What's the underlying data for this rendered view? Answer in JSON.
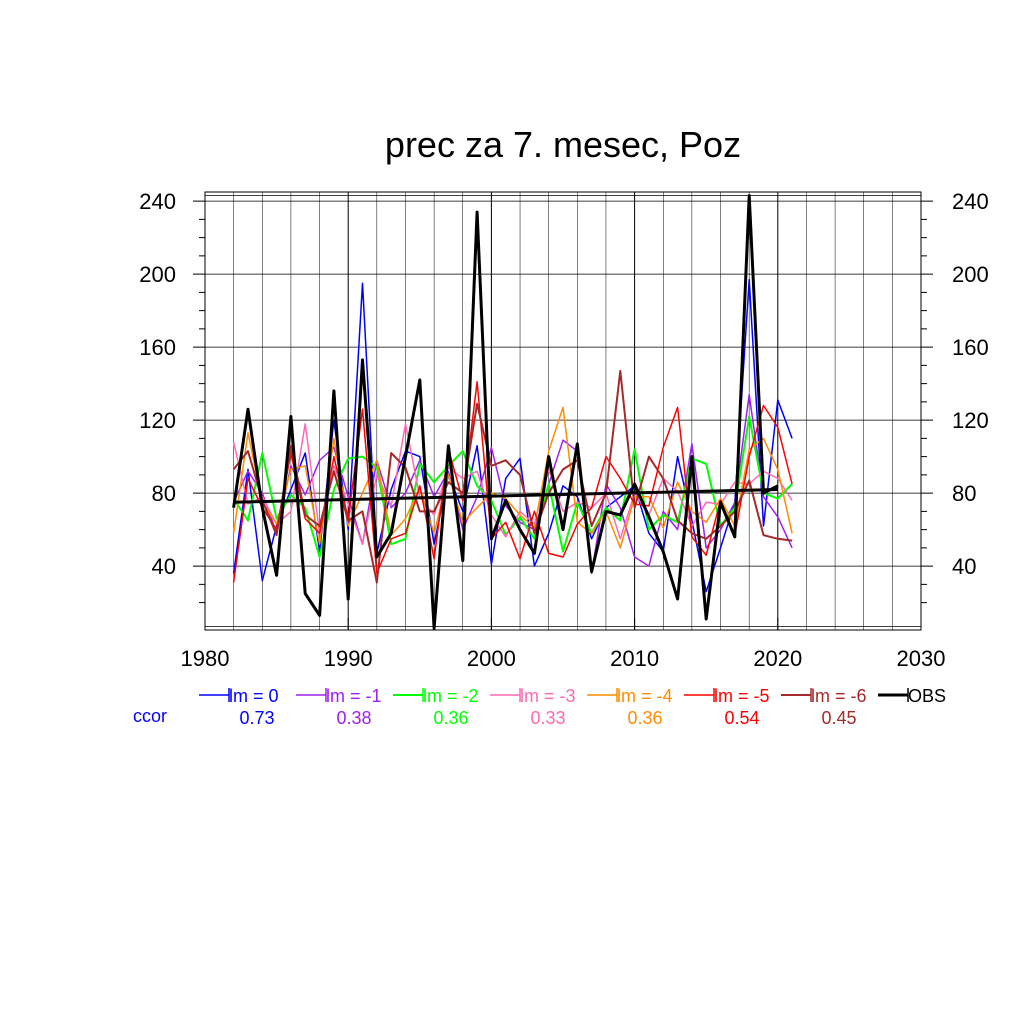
{
  "chart_data": {
    "type": "line",
    "title": "prec za 7. mesec, Poz",
    "xlabel": "",
    "ylabel": "",
    "xlim": [
      1980,
      2030
    ],
    "ylim": [
      5,
      245
    ],
    "x_ticks": [
      1980,
      1990,
      2000,
      2010,
      2020,
      2030
    ],
    "y_ticks": [
      40,
      80,
      120,
      160,
      200,
      240
    ],
    "grid": true,
    "legend_position": "below",
    "ccor_label": "ccor",
    "ccor_color": "#0000ff",
    "series": [
      {
        "name": "lm = 0",
        "color": "#0000ff",
        "width": 1.5,
        "ccor": "0.73",
        "x": [
          1982,
          1983,
          1984,
          1985,
          1986,
          1987,
          1988,
          1989,
          1990,
          1991,
          1992,
          1993,
          1994,
          1995,
          1996,
          1997,
          1998,
          1999,
          2000,
          2001,
          2002,
          2003,
          2004,
          2005,
          2006,
          2007,
          2008,
          2009,
          2010,
          2011,
          2012,
          2013,
          2014,
          2015,
          2016,
          2017,
          2018,
          2019,
          2020,
          2021
        ],
        "values": [
          36,
          93,
          32,
          62,
          82,
          102,
          48,
          120,
          60,
          195,
          47,
          82,
          103,
          100,
          52,
          90,
          70,
          106,
          41,
          88,
          99,
          40,
          58,
          84,
          78,
          55,
          72,
          78,
          84,
          58,
          48,
          100,
          65,
          26,
          50,
          75,
          197,
          62,
          131,
          110
        ]
      },
      {
        "name": "lm = -1",
        "color": "#a020f0",
        "width": 1.5,
        "ccor": "0.38",
        "x": [
          1982,
          1983,
          1984,
          1985,
          1986,
          1987,
          1988,
          1989,
          1990,
          1991,
          1992,
          1993,
          1994,
          1995,
          1996,
          1997,
          1998,
          1999,
          2000,
          2001,
          2002,
          2003,
          2004,
          2005,
          2006,
          2007,
          2008,
          2009,
          2010,
          2011,
          2012,
          2013,
          2014,
          2015,
          2016,
          2017,
          2018,
          2019,
          2020,
          2021
        ],
        "values": [
          75,
          92,
          80,
          58,
          95,
          79,
          98,
          105,
          78,
          52,
          98,
          72,
          80,
          98,
          78,
          92,
          60,
          78,
          105,
          73,
          64,
          60,
          85,
          109,
          103,
          36,
          85,
          72,
          45,
          40,
          70,
          60,
          107,
          50,
          60,
          75,
          134,
          78,
          67,
          50
        ]
      },
      {
        "name": "lm = -2",
        "color": "#00ff00",
        "width": 2,
        "ccor": "0.36",
        "x": [
          1982,
          1983,
          1984,
          1985,
          1986,
          1987,
          1988,
          1989,
          1990,
          1991,
          1992,
          1993,
          1994,
          1995,
          1996,
          1997,
          1998,
          1999,
          2000,
          2001,
          2002,
          2003,
          2004,
          2005,
          2006,
          2007,
          2008,
          2009,
          2010,
          2011,
          2012,
          2013,
          2014,
          2015,
          2016,
          2017,
          2018,
          2019,
          2020,
          2021
        ],
        "values": [
          77,
          65,
          102,
          66,
          79,
          72,
          45,
          82,
          99,
          100,
          94,
          52,
          55,
          96,
          86,
          95,
          103,
          84,
          76,
          57,
          67,
          55,
          85,
          48,
          75,
          58,
          72,
          65,
          104,
          60,
          68,
          64,
          99,
          96,
          62,
          72,
          122,
          80,
          77,
          85
        ]
      },
      {
        "name": "lm = -3",
        "color": "#ff69b4",
        "width": 1.5,
        "ccor": "0.33",
        "x": [
          1982,
          1983,
          1984,
          1985,
          1986,
          1987,
          1988,
          1989,
          1990,
          1991,
          1992,
          1993,
          1994,
          1995,
          1996,
          1997,
          1998,
          1999,
          2000,
          2001,
          2002,
          2003,
          2004,
          2005,
          2006,
          2007,
          2008,
          2009,
          2010,
          2011,
          2012,
          2013,
          2014,
          2015,
          2016,
          2017,
          2018,
          2019,
          2020,
          2021
        ],
        "values": [
          108,
          74,
          78,
          63,
          70,
          118,
          58,
          95,
          74,
          52,
          90,
          73,
          118,
          78,
          68,
          94,
          88,
          92,
          68,
          56,
          70,
          63,
          93,
          70,
          75,
          72,
          80,
          55,
          80,
          68,
          88,
          81,
          62,
          75,
          74,
          86,
          85,
          92,
          88,
          76
        ]
      },
      {
        "name": "lm = -4",
        "color": "#ff8c00",
        "width": 1.5,
        "ccor": "0.36",
        "x": [
          1982,
          1983,
          1984,
          1985,
          1986,
          1987,
          1988,
          1989,
          1990,
          1991,
          1992,
          1993,
          1994,
          1995,
          1996,
          1997,
          1998,
          1999,
          2000,
          2001,
          2002,
          2003,
          2004,
          2005,
          2006,
          2007,
          2008,
          2009,
          2010,
          2011,
          2012,
          2013,
          2014,
          2015,
          2016,
          2017,
          2018,
          2019,
          2020,
          2021
        ],
        "values": [
          58,
          113,
          75,
          63,
          93,
          95,
          52,
          110,
          62,
          80,
          98,
          57,
          66,
          83,
          58,
          90,
          64,
          72,
          80,
          77,
          68,
          61,
          103,
          127,
          64,
          58,
          70,
          50,
          78,
          78,
          61,
          86,
          70,
          64,
          77,
          62,
          104,
          110,
          93,
          58
        ]
      },
      {
        "name": "lm = -5",
        "color": "#ff0000",
        "width": 1.5,
        "ccor": "0.54",
        "x": [
          1982,
          1983,
          1984,
          1985,
          1986,
          1987,
          1988,
          1989,
          1990,
          1991,
          1992,
          1993,
          1994,
          1995,
          1996,
          1997,
          1998,
          1999,
          2000,
          2001,
          2002,
          2003,
          2004,
          2005,
          2006,
          2007,
          2008,
          2009,
          2010,
          2011,
          2012,
          2013,
          2014,
          2015,
          2016,
          2017,
          2018,
          2019,
          2020,
          2021
        ],
        "values": [
          31,
          88,
          72,
          60,
          102,
          66,
          58,
          100,
          66,
          126,
          36,
          55,
          58,
          84,
          44,
          104,
          76,
          141,
          55,
          64,
          44,
          70,
          47,
          45,
          63,
          72,
          100,
          88,
          74,
          73,
          105,
          127,
          56,
          46,
          76,
          57,
          100,
          128,
          116,
          85
        ]
      },
      {
        "name": "lm = -6",
        "color": "#a52a2a",
        "width": 2,
        "ccor": "0.45",
        "x": [
          1982,
          1983,
          1984,
          1985,
          1986,
          1987,
          1988,
          1989,
          1990,
          1991,
          1992,
          1993,
          1994,
          1995,
          1996,
          1997,
          1998,
          1999,
          2000,
          2001,
          2002,
          2003,
          2004,
          2005,
          2006,
          2007,
          2008,
          2009,
          2010,
          2011,
          2012,
          2013,
          2014,
          2015,
          2016,
          2017,
          2018,
          2019,
          2020,
          2021
        ],
        "values": [
          93,
          103,
          76,
          57,
          106,
          68,
          62,
          92,
          65,
          70,
          31,
          102,
          94,
          70,
          70,
          86,
          80,
          129,
          95,
          98,
          90,
          58,
          80,
          93,
          98,
          62,
          80,
          147,
          72,
          100,
          88,
          65,
          58,
          55,
          62,
          70,
          87,
          57,
          55,
          54
        ]
      },
      {
        "name": "OBS",
        "color": "#000000",
        "width": 3,
        "ccor": "",
        "x": [
          1982,
          1983,
          1984,
          1985,
          1986,
          1987,
          1988,
          1989,
          1990,
          1991,
          1992,
          1993,
          1994,
          1995,
          1996,
          1997,
          1998,
          1999,
          2000,
          2001,
          2002,
          2003,
          2004,
          2005,
          2006,
          2007,
          2008,
          2009,
          2010,
          2011,
          2012,
          2013,
          2014,
          2015,
          2016,
          2017,
          2018,
          2019,
          2020
        ],
        "values": [
          72,
          126,
          72,
          35,
          122,
          25,
          13,
          136,
          22,
          153,
          45,
          58,
          100,
          142,
          6,
          106,
          43,
          234,
          55,
          76,
          60,
          47,
          100,
          60,
          107,
          37,
          70,
          68,
          85,
          67,
          48,
          22,
          100,
          11,
          75,
          56,
          243,
          80,
          84
        ]
      }
    ],
    "trend_line": {
      "color": "#000000",
      "x": [
        1982,
        2020
      ],
      "values": [
        75,
        82
      ]
    }
  }
}
